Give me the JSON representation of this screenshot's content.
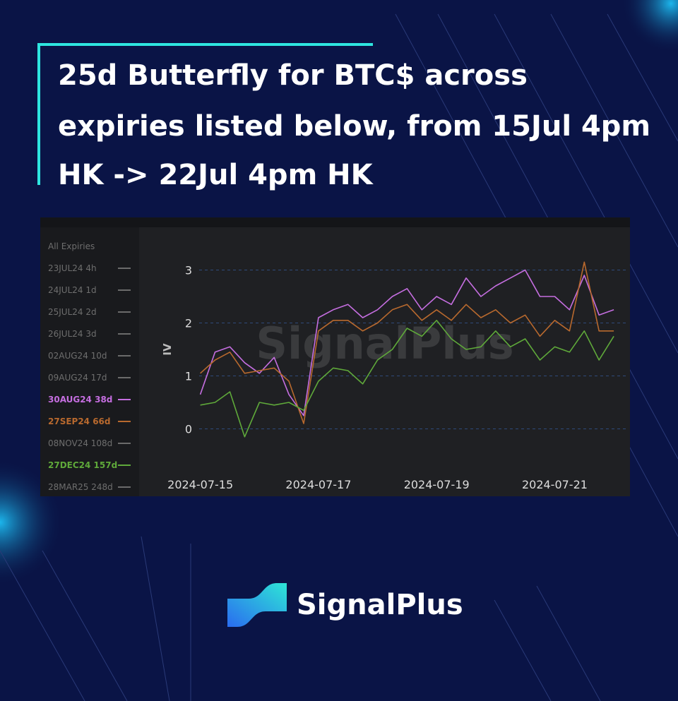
{
  "title_lines": [
    "25d Butterfly for BTC$ across",
    "expiries listed below, from 15Jul 4pm",
    "HK -> 22Jul 4pm HK"
  ],
  "brand": "SignalPlus",
  "chart_data": {
    "type": "line",
    "sidebar_header": "All Expiries",
    "watermark": "SignalPlus",
    "y_label": "IV",
    "x": [
      "2024-07-15 00:00",
      "2024-07-15 06:00",
      "2024-07-15 12:00",
      "2024-07-15 18:00",
      "2024-07-16 00:00",
      "2024-07-16 06:00",
      "2024-07-16 12:00",
      "2024-07-16 18:00",
      "2024-07-17 00:00",
      "2024-07-17 06:00",
      "2024-07-17 12:00",
      "2024-07-17 18:00",
      "2024-07-18 00:00",
      "2024-07-18 06:00",
      "2024-07-18 12:00",
      "2024-07-18 18:00",
      "2024-07-19 00:00",
      "2024-07-19 06:00",
      "2024-07-19 12:00",
      "2024-07-19 18:00",
      "2024-07-20 00:00",
      "2024-07-20 06:00",
      "2024-07-20 12:00",
      "2024-07-20 18:00",
      "2024-07-21 00:00",
      "2024-07-21 06:00",
      "2024-07-21 12:00",
      "2024-07-21 18:00",
      "2024-07-22 00:00"
    ],
    "series": [
      {
        "name": "23JUL24 4h",
        "color": "#6b6b6b"
      },
      {
        "name": "24JUL24 1d",
        "color": "#6b6b6b"
      },
      {
        "name": "25JUL24 2d",
        "color": "#6b6b6b"
      },
      {
        "name": "26JUL24 3d",
        "color": "#6b6b6b"
      },
      {
        "name": "02AUG24 10d",
        "color": "#6b6b6b"
      },
      {
        "name": "09AUG24 17d",
        "color": "#6b6b6b"
      },
      {
        "name": "30AUG24 38d",
        "color": "#c56ee0",
        "values": [
          0.65,
          1.45,
          1.55,
          1.25,
          1.05,
          1.35,
          0.65,
          0.25,
          2.1,
          2.25,
          2.35,
          2.1,
          2.25,
          2.5,
          2.65,
          2.25,
          2.5,
          2.35,
          2.85,
          2.5,
          2.7,
          2.85,
          3.0,
          2.5,
          2.5,
          2.25,
          2.9,
          2.15,
          2.25
        ]
      },
      {
        "name": "27SEP24 66d",
        "color": "#b8692e",
        "values": [
          1.05,
          1.3,
          1.45,
          1.05,
          1.1,
          1.15,
          0.9,
          0.1,
          1.85,
          2.05,
          2.05,
          1.85,
          2.0,
          2.25,
          2.35,
          2.05,
          2.25,
          2.05,
          2.35,
          2.1,
          2.25,
          2.0,
          2.15,
          1.75,
          2.05,
          1.85,
          3.15,
          1.85,
          1.85
        ]
      },
      {
        "name": "08NOV24 108d",
        "color": "#6b6b6b"
      },
      {
        "name": "27DEC24 157d",
        "color": "#5fa93a",
        "values": [
          0.45,
          0.5,
          0.7,
          -0.15,
          0.5,
          0.45,
          0.5,
          0.35,
          0.9,
          1.15,
          1.1,
          0.85,
          1.3,
          1.5,
          1.9,
          1.75,
          2.05,
          1.7,
          1.5,
          1.55,
          1.85,
          1.55,
          1.7,
          1.3,
          1.55,
          1.45,
          1.85,
          1.3,
          1.75
        ]
      },
      {
        "name": "28MAR25 248d",
        "color": "#6b6b6b"
      }
    ],
    "xlim": [
      "2024-07-14 00:00",
      "2024-07-22 06:00"
    ],
    "xticks": [
      "2024-07-15",
      "2024-07-17",
      "2024-07-19",
      "2024-07-21"
    ],
    "ylim": [
      -0.7,
      3.7
    ],
    "yticks": [
      0,
      1,
      2,
      3
    ],
    "grid": true
  }
}
